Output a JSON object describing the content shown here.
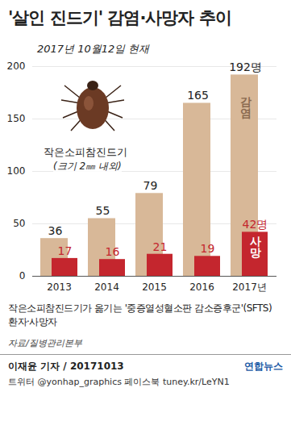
{
  "chart_data": {
    "type": "bar",
    "title": "'살인 진드기' 감염·사망자 추이",
    "subtitle": "2017년 10월12일 현재",
    "annotations": [
      "작은소피참진드기",
      "(크기 2㎜ 내외)"
    ],
    "note": "작은소피참진드기가 옮기는 '중증열성혈소판 감소증후군'(SFTS) 환자·사망자",
    "source": "자료/질병관리본부",
    "credit": "이재윤 기자 / 20171013",
    "footer": "트위터 @yonhap_graphics  페이스북 tuney.kr/LeYN1",
    "logo": "연합뉴스",
    "categories": [
      "2013",
      "2014",
      "2015",
      "2016",
      "2017년"
    ],
    "series": [
      {
        "name": "감염",
        "color": "#d8b898",
        "values": [
          36,
          55,
          79,
          165,
          192
        ],
        "value_labels": [
          "36",
          "55",
          "79",
          "165",
          "192명"
        ]
      },
      {
        "name": "사망",
        "color": "#c4262e",
        "values": [
          17,
          16,
          21,
          19,
          42
        ],
        "value_labels": [
          "17",
          "16",
          "21",
          "19",
          "42명"
        ]
      }
    ],
    "ylim": [
      0,
      200
    ],
    "yticks": [
      0,
      50,
      100,
      150,
      200
    ],
    "grid": true,
    "data_labels": true
  }
}
